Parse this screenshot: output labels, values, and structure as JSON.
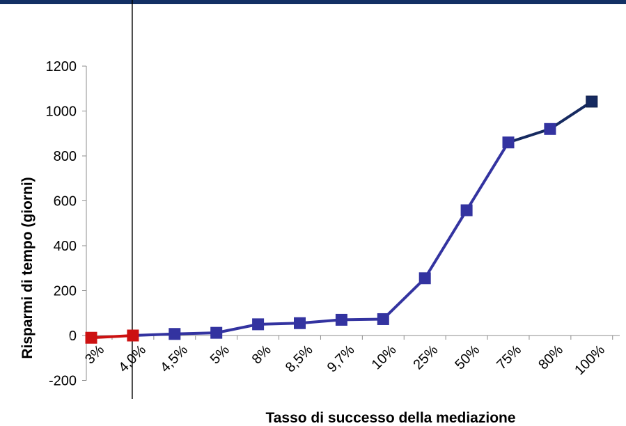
{
  "colors": {
    "band": "#133064",
    "series_blue": "#3333a0",
    "series_dark": "#162a60",
    "series_red": "#cc1111",
    "axis": "#8c8c8c",
    "vline": "#000000"
  },
  "chart_data": {
    "type": "line",
    "xlabel": "Tasso di successo della mediazione",
    "ylabel": "Risparmi di tempo (giorni)",
    "categories": [
      "3%",
      "4,0%",
      "4,5%",
      "5%",
      "8%",
      "8,5%",
      "9,7%",
      "10%",
      "25%",
      "50%",
      "75%",
      "80%",
      "100%"
    ],
    "values": [
      -10,
      0,
      7,
      12,
      50,
      55,
      70,
      73,
      255,
      558,
      860,
      920,
      1042
    ],
    "point_colors": [
      "red",
      "red",
      "blue",
      "blue",
      "blue",
      "blue",
      "blue",
      "blue",
      "blue",
      "blue",
      "blue",
      "blue",
      "dark"
    ],
    "segment_colors": [
      "red",
      "blue",
      "blue",
      "blue",
      "blue",
      "blue",
      "blue",
      "blue",
      "blue",
      "blue",
      "dark",
      "dark"
    ],
    "ylim": [
      -200,
      1200
    ],
    "yticks": [
      -200,
      0,
      200,
      400,
      600,
      800,
      1000,
      1200
    ],
    "ytick_labels": [
      "-200",
      "0",
      "200",
      "400",
      "600",
      "800",
      "1000",
      "1200"
    ],
    "vertical_marker_category": "4,0%",
    "grid": false,
    "legend": "none"
  }
}
